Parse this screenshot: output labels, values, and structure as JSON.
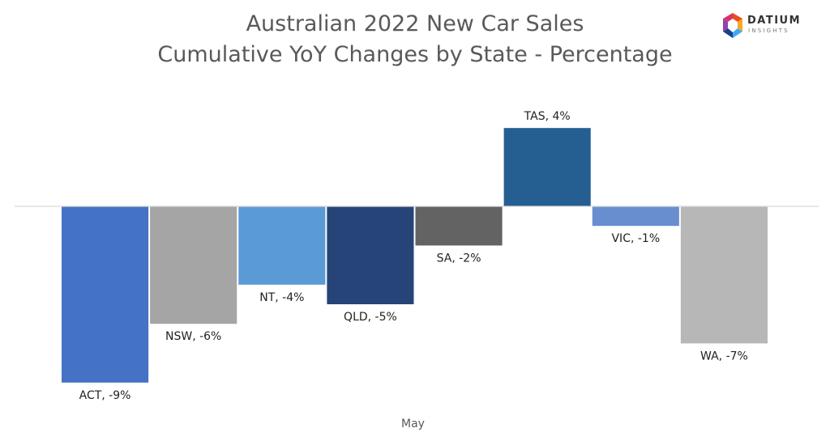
{
  "chart_data": {
    "type": "bar",
    "title": "Australian 2022 New Car Sales",
    "subtitle": "Cumulative YoY Changes by State - Percentage",
    "xlabel": "May",
    "ylabel": "",
    "ylim": [
      -9,
      4
    ],
    "grid": false,
    "legend": "none",
    "series": [
      {
        "name": "ACT",
        "value": -9,
        "label": "ACT, -9%",
        "color": "#4472C4"
      },
      {
        "name": "NSW",
        "value": -6,
        "label": "NSW, -6%",
        "color": "#A5A5A5"
      },
      {
        "name": "NT",
        "value": -4,
        "label": "NT, -4%",
        "color": "#5B9BD5"
      },
      {
        "name": "QLD",
        "value": -5,
        "label": "QLD, -5%",
        "color": "#264478"
      },
      {
        "name": "SA",
        "value": -2,
        "label": "SA, -2%",
        "color": "#636363"
      },
      {
        "name": "TAS",
        "value": 4,
        "label": "TAS, 4%",
        "color": "#255E91"
      },
      {
        "name": "VIC",
        "value": -1,
        "label": "VIC, -1%",
        "color": "#698ED0"
      },
      {
        "name": "WA",
        "value": -7,
        "label": "WA, -7%",
        "color": "#B7B7B7"
      }
    ]
  },
  "logo": {
    "word": "DATIUM",
    "sub": "INSIGHTS",
    "colors": [
      "#E84E1B",
      "#F7A823",
      "#3FA9F5",
      "#1D3F8F",
      "#8E44AD"
    ]
  }
}
